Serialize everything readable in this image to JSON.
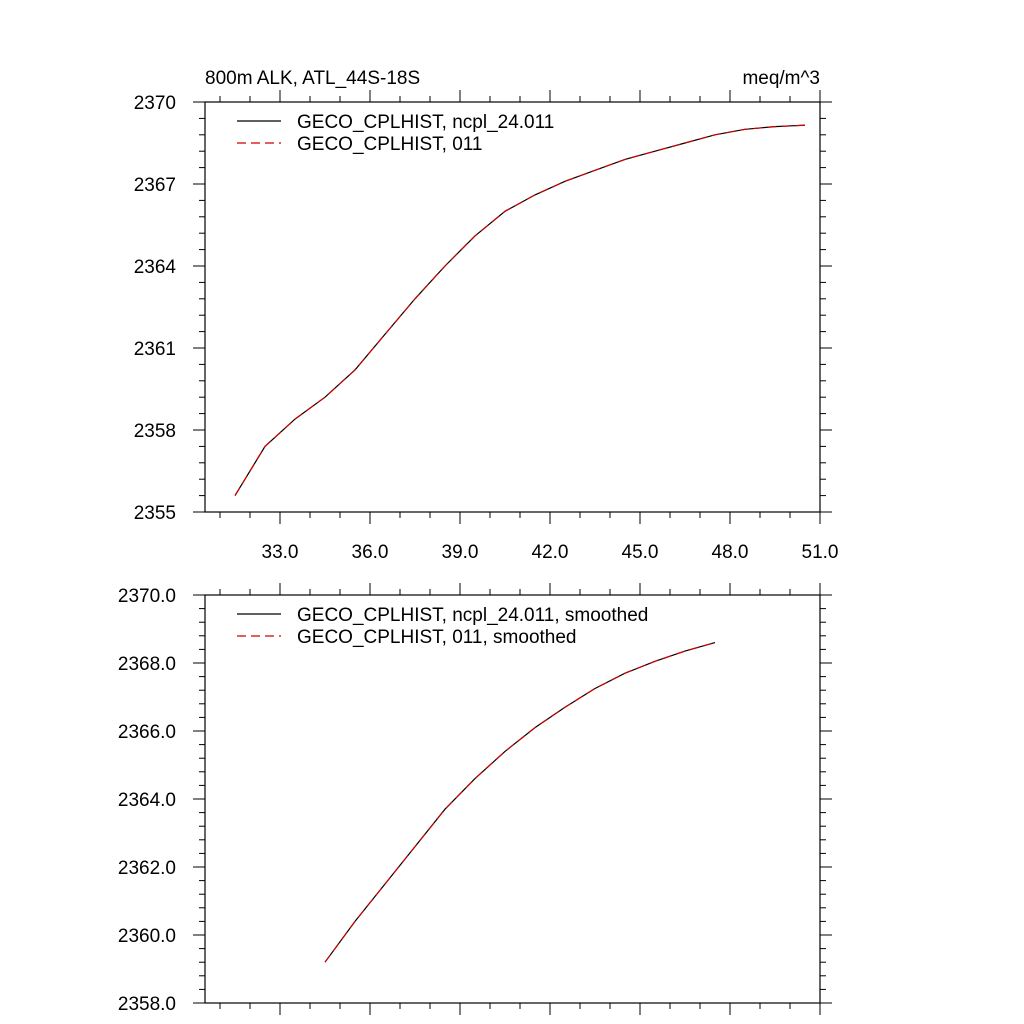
{
  "chart_data": [
    {
      "type": "line",
      "title_left": "800m ALK, ATL_44S-18S",
      "title_right": "meq/m^3",
      "xlim": [
        30.5,
        51.0
      ],
      "ylim": [
        2355,
        2370
      ],
      "x_ticks": [
        33.0,
        36.0,
        39.0,
        42.0,
        45.0,
        48.0,
        51.0
      ],
      "x_tick_labels": [
        "33.0",
        "36.0",
        "39.0",
        "42.0",
        "45.0",
        "48.0",
        "51.0"
      ],
      "y_ticks": [
        2355,
        2358,
        2361,
        2364,
        2367,
        2370
      ],
      "y_tick_labels": [
        "2355",
        "2358",
        "2361",
        "2364",
        "2367",
        "2370"
      ],
      "legend_position": "top-left",
      "series": [
        {
          "name": "GECO_CPLHIST, ncpl_24.011",
          "color": "#000000",
          "dash": "solid",
          "x": [
            31.5,
            32.5,
            33.5,
            34.5,
            35.5,
            36.5,
            37.5,
            38.5,
            39.5,
            40.5,
            41.5,
            42.5,
            43.5,
            44.5,
            45.5,
            46.5,
            47.5,
            48.5,
            49.5,
            50.5
          ],
          "y": [
            2355.6,
            2357.4,
            2358.4,
            2359.2,
            2360.2,
            2361.5,
            2362.8,
            2364.0,
            2365.1,
            2366.0,
            2366.6,
            2367.1,
            2367.5,
            2367.9,
            2368.2,
            2368.5,
            2368.8,
            2369.0,
            2369.1,
            2369.15
          ]
        },
        {
          "name": "GECO_CPLHIST, 011",
          "color": "#cc0000",
          "dash": "dashed",
          "x": [
            31.5,
            32.5,
            33.5,
            34.5,
            35.5,
            36.5,
            37.5,
            38.5,
            39.5,
            40.5,
            41.5,
            42.5,
            43.5,
            44.5,
            45.5,
            46.5,
            47.5,
            48.5,
            49.5,
            50.5
          ],
          "y": [
            2355.6,
            2357.4,
            2358.4,
            2359.2,
            2360.2,
            2361.5,
            2362.8,
            2364.0,
            2365.1,
            2366.0,
            2366.6,
            2367.1,
            2367.5,
            2367.9,
            2368.2,
            2368.5,
            2368.8,
            2369.0,
            2369.1,
            2369.15
          ]
        }
      ]
    },
    {
      "type": "line",
      "xlim": [
        30.5,
        51.0
      ],
      "ylim": [
        2358.0,
        2370.0
      ],
      "x_ticks": [
        33.0,
        36.0,
        39.0,
        42.0,
        45.0,
        48.0,
        51.0
      ],
      "y_ticks": [
        2358.0,
        2360.0,
        2362.0,
        2364.0,
        2366.0,
        2368.0,
        2370.0
      ],
      "y_tick_labels": [
        "2358.0",
        "2360.0",
        "2362.0",
        "2364.0",
        "2366.0",
        "2368.0",
        "2370.0"
      ],
      "legend_position": "top-left",
      "series": [
        {
          "name": "GECO_CPLHIST, ncpl_24.011, smoothed",
          "color": "#000000",
          "dash": "solid",
          "x": [
            34.5,
            35.5,
            36.5,
            37.5,
            38.5,
            39.5,
            40.5,
            41.5,
            42.5,
            43.5,
            44.5,
            45.5,
            46.5,
            47.5
          ],
          "y": [
            2359.2,
            2360.4,
            2361.5,
            2362.6,
            2363.7,
            2364.6,
            2365.4,
            2366.1,
            2366.7,
            2367.25,
            2367.7,
            2368.05,
            2368.35,
            2368.6
          ]
        },
        {
          "name": "GECO_CPLHIST, 011, smoothed",
          "color": "#cc0000",
          "dash": "dashed",
          "x": [
            34.5,
            35.5,
            36.5,
            37.5,
            38.5,
            39.5,
            40.5,
            41.5,
            42.5,
            43.5,
            44.5,
            45.5,
            46.5,
            47.5
          ],
          "y": [
            2359.2,
            2360.4,
            2361.5,
            2362.6,
            2363.7,
            2364.6,
            2365.4,
            2366.1,
            2366.7,
            2367.25,
            2367.7,
            2368.05,
            2368.35,
            2368.6
          ]
        }
      ]
    }
  ]
}
